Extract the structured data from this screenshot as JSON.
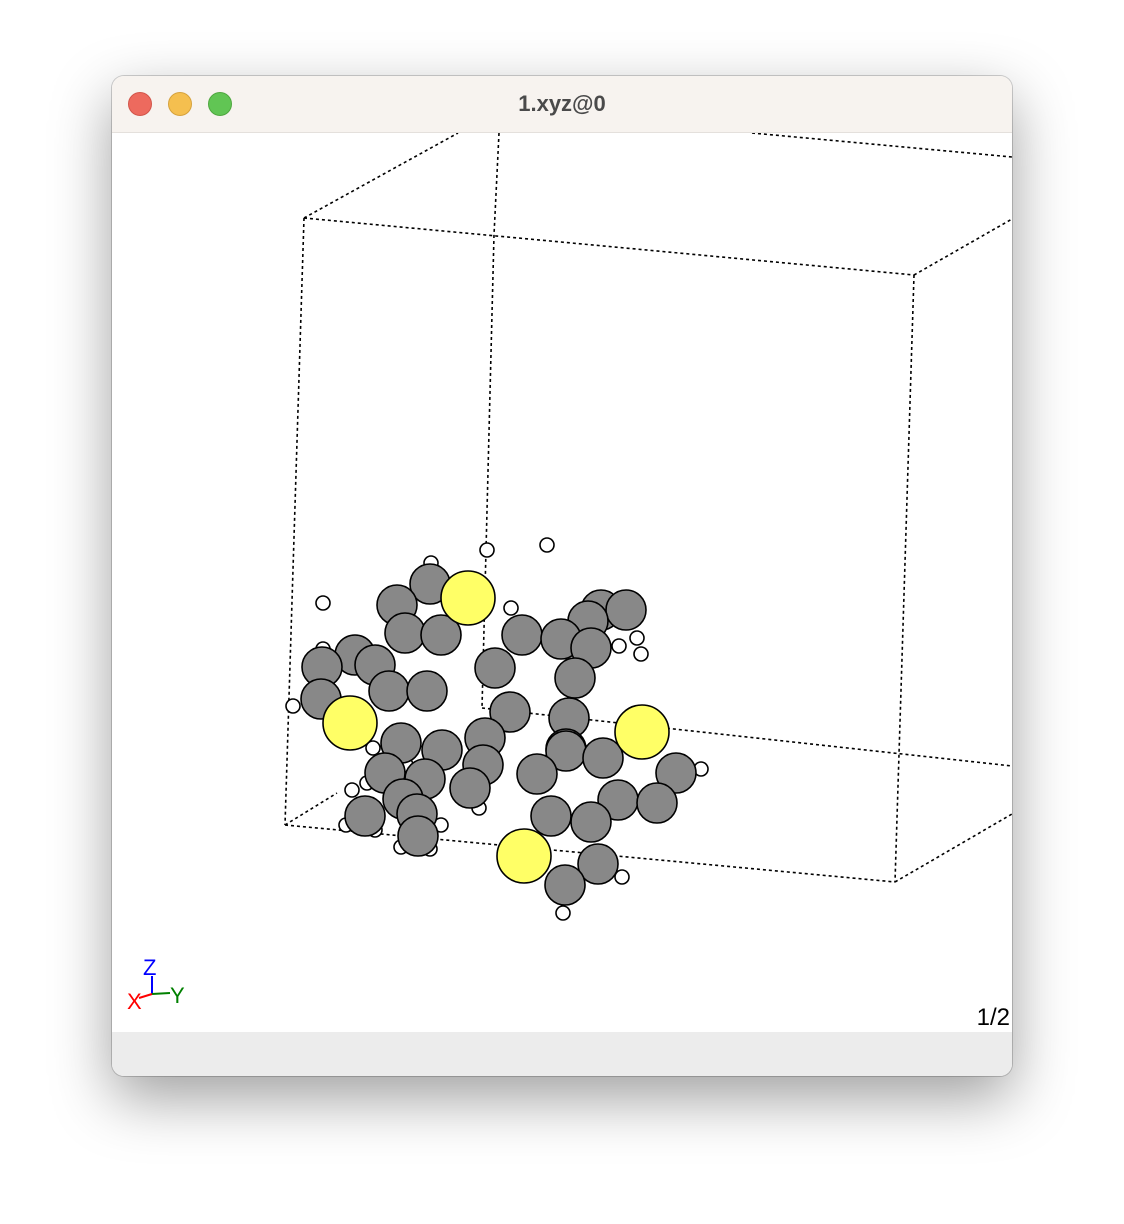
{
  "window": {
    "title": "1.xyz@0",
    "buttons": [
      "close",
      "minimize",
      "zoom"
    ]
  },
  "viewer": {
    "frame_counter": "1/2",
    "axes": {
      "x": "X",
      "y": "Y",
      "z": "Z"
    },
    "colors": {
      "carbon": "#888888",
      "sulfur": "#ffff66",
      "hydrogen": "#ffffff",
      "axis_x": "#ff0000",
      "axis_y": "#008000",
      "axis_z": "#0000ff",
      "cell_line": "#000000"
    },
    "show_unit_cell": true,
    "atom_counts": {
      "C": 42,
      "S": 4,
      "H": 26
    }
  }
}
